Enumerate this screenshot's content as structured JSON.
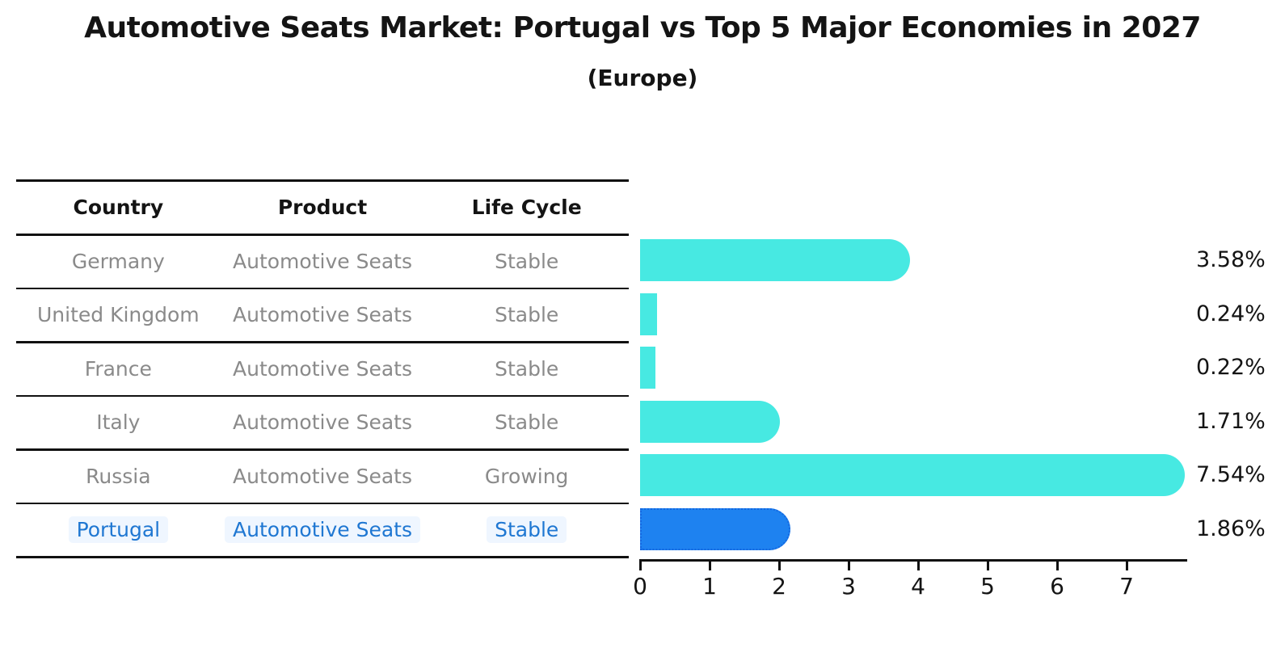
{
  "title": "Automotive Seats Market: Portugal vs Top 5 Major Economies in 2027",
  "subtitle": "(Europe)",
  "table": {
    "headers": [
      "Country",
      "Product",
      "Life Cycle"
    ],
    "rows": [
      {
        "country": "Germany",
        "product": "Automotive Seats",
        "life_cycle": "Stable",
        "highlight": false
      },
      {
        "country": "United Kingdom",
        "product": "Automotive Seats",
        "life_cycle": "Stable",
        "highlight": false
      },
      {
        "country": "France",
        "product": "Automotive Seats",
        "life_cycle": "Stable",
        "highlight": false
      },
      {
        "country": "Italy",
        "product": "Automotive Seats",
        "life_cycle": "Stable",
        "highlight": false
      },
      {
        "country": "Russia",
        "product": "Automotive Seats",
        "life_cycle": "Growing",
        "highlight": false
      },
      {
        "country": "Portugal",
        "product": "Automotive Seats",
        "life_cycle": "Stable",
        "highlight": true
      }
    ]
  },
  "chart_data": {
    "type": "bar",
    "orientation": "horizontal",
    "title": "Automotive Seats Market: Portugal vs Top 5 Major Economies in 2027",
    "subtitle": "(Europe)",
    "categories": [
      "Germany",
      "United Kingdom",
      "France",
      "Italy",
      "Russia",
      "Portugal"
    ],
    "values": [
      3.58,
      0.24,
      0.22,
      1.71,
      7.54,
      1.86
    ],
    "value_labels": [
      "3.58%",
      "0.24%",
      "0.22%",
      "1.71%",
      "7.54%",
      "1.86%"
    ],
    "x_ticks": [
      0,
      1,
      2,
      3,
      4,
      5,
      6,
      7
    ],
    "xlim": [
      0,
      7.9
    ],
    "xlabel": "",
    "ylabel": "",
    "grid": false,
    "legend": false,
    "bar_color": "#47e9e2",
    "highlight_bar_color": "#1e82f0",
    "highlight_border_color": "#1467e0",
    "highlighted_category": "Portugal"
  },
  "colors": {
    "bar_cyan": "#47e9e2",
    "bar_blue": "#1e82f0",
    "text_black": "#141414",
    "text_gray": "#8a8a8a",
    "link_blue": "#1f77d2"
  }
}
